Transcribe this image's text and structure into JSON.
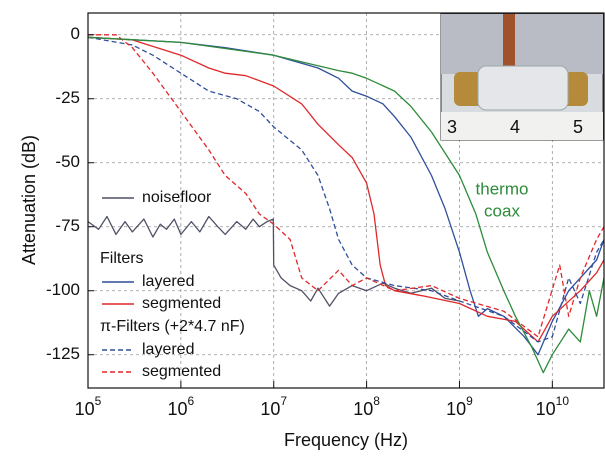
{
  "chart_data": {
    "type": "line",
    "x_label": "Frequency (Hz)",
    "y_label": "Attenuation (dB)",
    "xscale": "log",
    "xlim": [
      100000,
      36000000000
    ],
    "ylim": [
      -138,
      8.5
    ],
    "xticks": [
      {
        "value": 100000,
        "label": "10",
        "exponent": "5"
      },
      {
        "value": 1000000,
        "label": "10",
        "exponent": "6"
      },
      {
        "value": 10000000,
        "label": "10",
        "exponent": "7"
      },
      {
        "value": 100000000,
        "label": "10",
        "exponent": "8"
      },
      {
        "value": 1000000000,
        "label": "10",
        "exponent": "9"
      },
      {
        "value": 10000000000,
        "label": "10",
        "exponent": "10"
      }
    ],
    "yticks": [
      0,
      -25,
      -50,
      -75,
      -100,
      -125
    ],
    "grid": true,
    "legend_headings": [
      "Filters",
      "π-Filters (+2*4.7 nF)"
    ],
    "annotations": [
      "thermo",
      "coax"
    ],
    "annotation_color": "#2e8b3a",
    "inset": {
      "ruler_labels": [
        "3",
        "4",
        "5"
      ]
    },
    "series": [
      {
        "name": "noisefloor",
        "color": "#4f5166",
        "dash": false,
        "x": [
          100000,
          130000,
          160000,
          200000,
          250000,
          300000,
          400000,
          500000,
          600000,
          700000,
          850000,
          1000000,
          1300000,
          1600000,
          2000000,
          2500000,
          3000000,
          4000000,
          5000000,
          6000000,
          7000000,
          8500000,
          9900000,
          10000000,
          12000000,
          15000000,
          20000000,
          25000000,
          30000000,
          40000000,
          50000000,
          70000000,
          100000000,
          150000000,
          200000000,
          300000000,
          500000000,
          700000000,
          1000000000
        ],
        "values": [
          -73,
          -76,
          -71,
          -78,
          -73,
          -77,
          -72,
          -79,
          -74,
          -76,
          -72,
          -78,
          -73,
          -77,
          -71,
          -75,
          -78,
          -73,
          -76,
          -72,
          -75,
          -73,
          -72,
          -90,
          -95,
          -98,
          -100,
          -104,
          -99,
          -106,
          -101,
          -98,
          -100,
          -97,
          -99,
          -101,
          -99,
          -103,
          -104
        ]
      },
      {
        "name": "layered",
        "color": "#2f4f9c",
        "dash": false,
        "x": [
          100000,
          1000000,
          3000000,
          10000000,
          30000000,
          50000000,
          70000000,
          100000000,
          150000000,
          200000000,
          300000000,
          500000000,
          700000000,
          1000000000,
          1300000000,
          1600000000,
          2000000000,
          3000000000,
          5000000000,
          7000000000,
          10000000000,
          15000000000,
          20000000000,
          30000000000,
          36000000000
        ],
        "values": [
          -1,
          -3,
          -5,
          -8,
          -13,
          -17,
          -22,
          -24,
          -27,
          -32,
          -40,
          -55,
          -68,
          -85,
          -100,
          -110,
          -107,
          -110,
          -118,
          -125,
          -112,
          -100,
          -95,
          -88,
          -80
        ]
      },
      {
        "name": "segmented",
        "color": "#e0282a",
        "dash": false,
        "x": [
          100000,
          300000,
          1000000,
          2000000,
          3000000,
          5000000,
          10000000,
          20000000,
          30000000,
          50000000,
          70000000,
          100000000,
          120000000,
          140000000,
          160000000,
          200000000,
          400000000,
          1000000000,
          2000000000,
          4000000000,
          7000000000,
          10000000000,
          20000000000,
          30000000000,
          36000000000
        ],
        "values": [
          -1,
          -2,
          -8,
          -13,
          -15,
          -16,
          -20,
          -27,
          -35,
          -43,
          -48,
          -58,
          -70,
          -90,
          -98,
          -100,
          -102,
          -105,
          -110,
          -112,
          -120,
          -110,
          -100,
          -93,
          -88
        ]
      },
      {
        "name": "layered",
        "color": "#2f4f9c",
        "dash": true,
        "x": [
          100000,
          300000,
          500000,
          1000000,
          2000000,
          4000000,
          7000000,
          10000000,
          20000000,
          30000000,
          40000000,
          50000000,
          70000000,
          100000000,
          200000000,
          500000000,
          1000000000,
          3000000000,
          7000000000,
          10000000000,
          15000000000,
          20000000000,
          30000000000,
          36000000000
        ],
        "values": [
          -1,
          -4,
          -8,
          -15,
          -22,
          -25,
          -30,
          -36,
          -45,
          -55,
          -68,
          -80,
          -90,
          -95,
          -98,
          -100,
          -104,
          -110,
          -120,
          -118,
          -95,
          -105,
          -85,
          -80
        ]
      },
      {
        "name": "segmented",
        "color": "#e0282a",
        "dash": true,
        "x": [
          100000,
          200000,
          300000,
          500000,
          1000000,
          2000000,
          3000000,
          5000000,
          7000000,
          10000000,
          15000000,
          20000000,
          30000000,
          50000000,
          70000000,
          100000000,
          200000000,
          500000000,
          1000000000,
          3000000000,
          7000000000,
          12000000000,
          15000000000,
          20000000000,
          30000000000,
          36000000000
        ],
        "values": [
          0,
          0,
          -5,
          -15,
          -30,
          -45,
          -55,
          -62,
          -70,
          -74,
          -80,
          -95,
          -100,
          -92,
          -98,
          -95,
          -100,
          -98,
          -103,
          -108,
          -118,
          -90,
          -110,
          -95,
          -80,
          -75
        ]
      },
      {
        "color": "#2e8b3a",
        "dash": false,
        "x": [
          100000,
          1000000,
          10000000,
          50000000,
          70000000,
          100000000,
          200000000,
          300000000,
          500000000,
          1000000000,
          1500000000,
          2000000000,
          3000000000,
          4000000000,
          6000000000,
          8000000000,
          10000000000,
          15000000000,
          20000000000,
          25000000000,
          30000000000,
          36000000000
        ],
        "values": [
          -1,
          -3,
          -8,
          -14,
          -15,
          -17,
          -22,
          -28,
          -38,
          -55,
          -70,
          -85,
          -100,
          -110,
          -122,
          -132,
          -125,
          -115,
          -120,
          -100,
          -110,
          -95
        ]
      }
    ]
  }
}
